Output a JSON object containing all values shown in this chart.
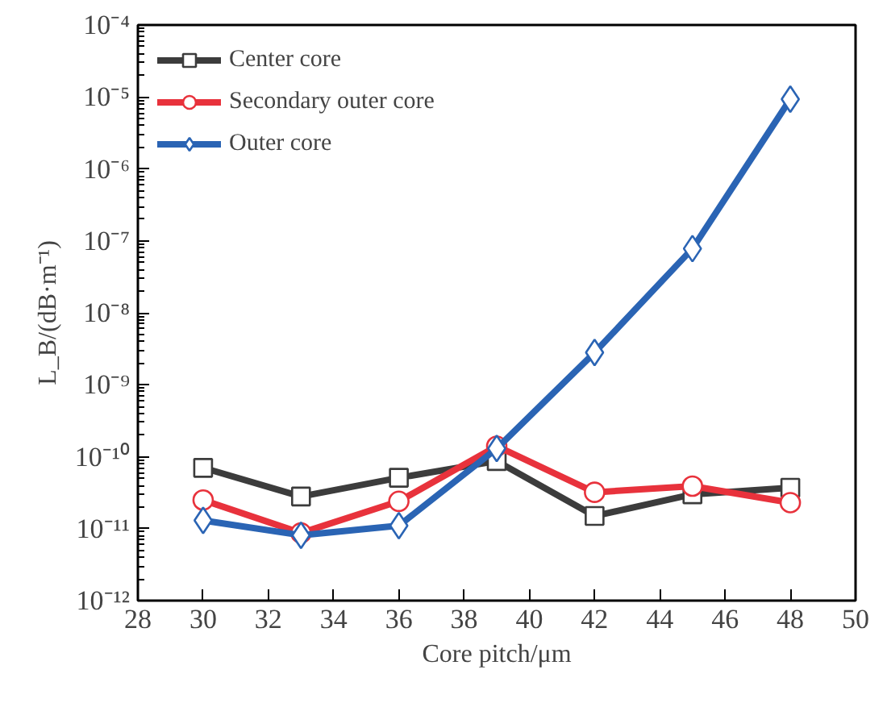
{
  "chart_data": {
    "type": "line",
    "xlabel": "Core pitch/μm",
    "ylabel": "L_B/(dB·m⁻¹)",
    "x": [
      30,
      33,
      36,
      39,
      42,
      45,
      48
    ],
    "series": [
      {
        "name": "Center core",
        "color": "#3c3c3c",
        "marker": "square",
        "values": [
          7e-11,
          2.8e-11,
          5.1e-11,
          8.7e-11,
          1.5e-11,
          3e-11,
          3.7e-11
        ]
      },
      {
        "name": "Secondary outer core",
        "color": "#e8323c",
        "marker": "circle",
        "values": [
          2.5e-11,
          8.7e-12,
          2.4e-11,
          1.4e-10,
          3.2e-11,
          3.9e-11,
          2.3e-11
        ]
      },
      {
        "name": "Outer core",
        "color": "#2a64b4",
        "marker": "diamond",
        "values": [
          1.3e-11,
          8.1e-12,
          1.1e-11,
          1.3e-10,
          2.8e-09,
          7.8e-08,
          9.3e-06
        ]
      }
    ],
    "log": "y",
    "xlim": [
      28,
      50
    ],
    "xticks": [
      28,
      30,
      32,
      34,
      36,
      38,
      40,
      42,
      44,
      46,
      48,
      50
    ],
    "ylim": [
      1e-12,
      0.0001
    ],
    "yticks": [
      {
        "value": 1e-12,
        "label": "10⁻¹²"
      },
      {
        "value": 1e-11,
        "label": "10⁻¹¹"
      },
      {
        "value": 1e-10,
        "label": "10⁻¹⁰"
      },
      {
        "value": 1e-09,
        "label": "10⁻⁹"
      },
      {
        "value": 1e-08,
        "label": "10⁻⁸"
      },
      {
        "value": 1e-07,
        "label": "10⁻⁷"
      },
      {
        "value": 1e-06,
        "label": "10⁻⁶"
      },
      {
        "value": 1e-05,
        "label": "10⁻⁵"
      },
      {
        "value": 0.0001,
        "label": "10⁻⁴"
      }
    ],
    "grid": false,
    "legend": "top left",
    "line_style": "solid"
  }
}
